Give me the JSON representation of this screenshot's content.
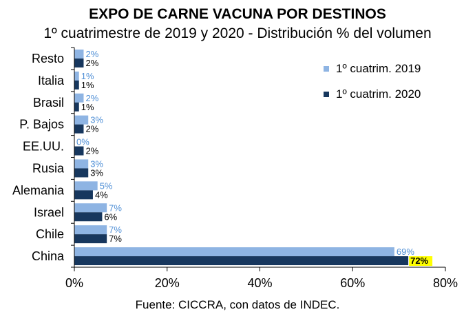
{
  "chart_data": {
    "type": "bar",
    "orientation": "horizontal",
    "title": "EXPO DE CARNE VACUNA POR DESTINOS",
    "subtitle": "1º cuatrimestre de 2019 y 2020 - Distribución % del volumen",
    "categories": [
      "Resto",
      "Italia",
      "Brasil",
      "P. Bajos",
      "EE.UU.",
      "Rusia",
      "Alemania",
      "Israel",
      "Chile",
      "China"
    ],
    "series": [
      {
        "name": "1º cuatrim. 2019",
        "color": "#8EB4E3",
        "label_color": "#4F8FD6",
        "values": [
          2,
          1,
          2,
          3,
          0,
          3,
          5,
          7,
          7,
          69
        ],
        "labels": [
          "2%",
          "1%",
          "2%",
          "3%",
          "0%",
          "3%",
          "5%",
          "7%",
          "7%",
          "69%"
        ]
      },
      {
        "name": "1º cuatrim. 2020",
        "color": "#17375E",
        "label_color": "#000000",
        "values": [
          2,
          1,
          1,
          2,
          2,
          3,
          4,
          6,
          7,
          72
        ],
        "labels": [
          "2%",
          "1%",
          "1%",
          "2%",
          "2%",
          "3%",
          "4%",
          "6%",
          "7%",
          "72%"
        ]
      }
    ],
    "highlight": {
      "series": 1,
      "category": "China",
      "color": "#FFFF00"
    },
    "xlim": [
      0,
      80
    ],
    "xticks": [
      0,
      20,
      40,
      60,
      80
    ],
    "xtick_labels": [
      "0%",
      "20%",
      "40%",
      "60%",
      "80%"
    ],
    "grid": false,
    "legend_position": "top-right"
  },
  "source": "Fuente: CICCRA, con datos de INDEC."
}
